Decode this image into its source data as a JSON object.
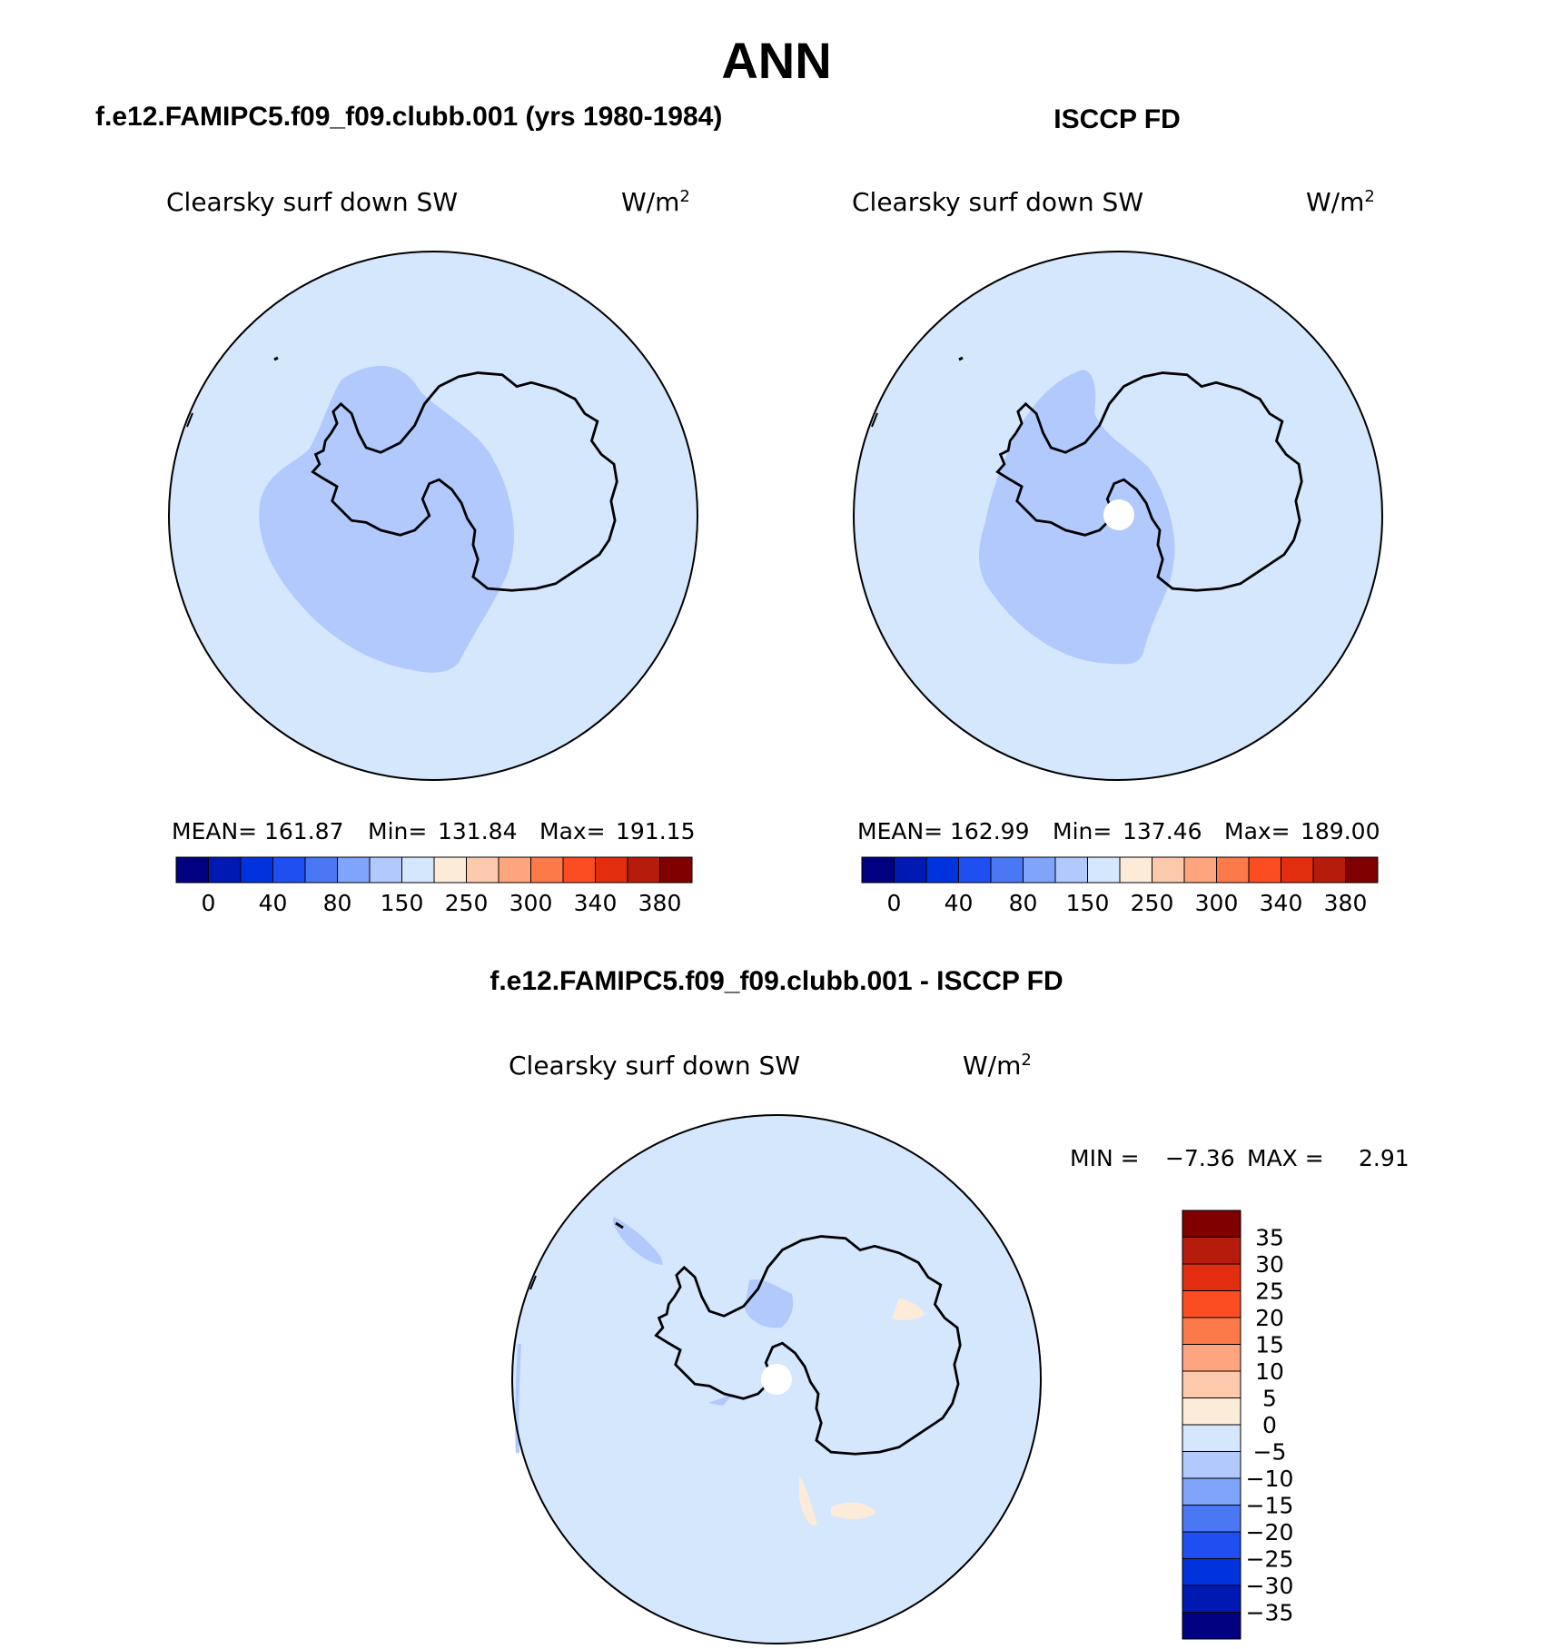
{
  "page_title": "ANN",
  "panels": [
    {
      "heading": "f.e12.FAMIPC5.f09_f09.clubb.001 (yrs 1980-1984)",
      "variable": "Clearsky surf down SW",
      "units_base": "W/m",
      "units_exp": "2",
      "stats": {
        "mean_label": "MEAN=",
        "mean": "161.87",
        "min_label": "Min=",
        "min": "131.84",
        "max_label": "Max=",
        "max": "191.15"
      },
      "has_pole_hole": false
    },
    {
      "heading": "ISCCP FD",
      "variable": "Clearsky surf down SW",
      "units_base": "W/m",
      "units_exp": "2",
      "stats": {
        "mean_label": "MEAN=",
        "mean": "162.99",
        "min_label": "Min=",
        "min": "137.46",
        "max_label": "Max=",
        "max": "189.00"
      },
      "has_pole_hole": true
    }
  ],
  "horizontal_colorbar": {
    "colors": [
      "#000080",
      "#0019b3",
      "#0033dd",
      "#1f4ff0",
      "#4a78f5",
      "#7fa4fa",
      "#b1c9fd",
      "#d5e7fd",
      "#fdebd9",
      "#fcc9ac",
      "#fca57f",
      "#fc7a4a",
      "#fb4c22",
      "#e22e0f",
      "#b61c0b",
      "#800000"
    ],
    "tick_labels": [
      "0",
      "40",
      "80",
      "150",
      "250",
      "300",
      "340",
      "380"
    ]
  },
  "difference_panel": {
    "heading": "f.e12.FAMIPC5.f09_f09.clubb.001 - ISCCP FD",
    "variable": "Clearsky surf down SW",
    "units_base": "W/m",
    "units_exp": "2",
    "min_label": "MIN =",
    "min": "−7.36",
    "max_label": "MAX =",
    "max": "2.91",
    "colorbar_colors_top_to_bottom": [
      "#800000",
      "#b61c0b",
      "#e22e0f",
      "#fb4c22",
      "#fc7a4a",
      "#fca57f",
      "#fcc9ac",
      "#fdebd9",
      "#d5e7fd",
      "#b1c9fd",
      "#7fa4fa",
      "#4a78f5",
      "#1f4ff0",
      "#0033dd",
      "#0019b3",
      "#000080"
    ],
    "colorbar_labels": [
      "35",
      "30",
      "25",
      "20",
      "15",
      "10",
      "5",
      "0",
      "−5",
      "−10",
      "−15",
      "−20",
      "−25",
      "−30",
      "−35"
    ]
  },
  "colors": {
    "ocean_fill": "#d5e7fd",
    "mid_band_fill": "#b1c9fd",
    "positive_patch": "#fdebd9",
    "coastline": "#000000"
  }
}
